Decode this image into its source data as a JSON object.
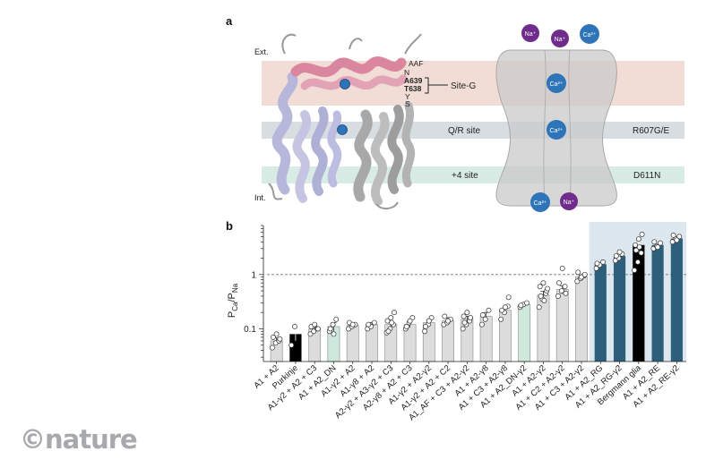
{
  "panel_a": {
    "label": "a",
    "ext_label": "Ext.",
    "int_label": "Int.",
    "residue_lines": [
      "AAF",
      "N",
      "A639",
      "T638",
      "Y",
      "S"
    ],
    "site_g_label": "Site-G",
    "band_qr_left": "Q/R site",
    "band_qr_right": "R607G/E",
    "band_4_left": "+4 site",
    "band_4_right": "D611N",
    "ions": {
      "na": "Na⁺",
      "ca": "Ca²⁺"
    },
    "colors": {
      "band_siteg": "#f2ddd6",
      "band_qr": "#d7dde1",
      "band_4": "#d8ebe4",
      "channel": "#c9c9c9",
      "ca_ion": "#2d74b8",
      "na_ion": "#6f2c8c",
      "helix_pink": "#d9869e",
      "helix_lav": "#b7b7dc",
      "helix_gray": "#a8a8a8"
    }
  },
  "panel_b": {
    "label": "b",
    "y_label_main": "P",
    "y_label_sub1": "Ca",
    "y_label_sep": "/P",
    "y_label_sub2": "Na",
    "colors": {
      "gray_bar": "#dcdcdc",
      "black_bar": "#000000",
      "green_bar": "#cfe8dc",
      "blue_bar": "#2e5f7a",
      "highlight": "#dce7f0"
    }
  },
  "chart_data": {
    "type": "bar",
    "yscale": "log",
    "ylim": [
      0.025,
      8
    ],
    "yticks": [
      0.1,
      1
    ],
    "ytick_labels": [
      "0.1",
      "1"
    ],
    "reference_line": 1,
    "categories": [
      "A1 + A2",
      "Purkinje",
      "A1-γ2 + A2 + C3",
      "A1 + A2_DN",
      "A1-γ2 + A2",
      "A1-γ8 + A2",
      "A2-γ2 + A3-γ2 + C3",
      "A2-γ8 + A2 + C3",
      "A1-γ2 + A2-γ2",
      "A1-γ2 + A2 + C2",
      "A1_AF + C3 + A2-γ2",
      "A1 + A2-γ8",
      "A1 + C3 + A2-γ8",
      "A1 + A2_DN-γ2",
      "A1 + A2-γ2",
      "A1 + C2 + A2-γ2",
      "A1 + C3 + A2-γ2",
      "A1 + A2_RG",
      "A1 + A2_RG-γ2",
      "Bergmann glia",
      "A1 + A2_RE",
      "A1 + A2_RE-γ2"
    ],
    "values": [
      0.06,
      0.08,
      0.1,
      0.11,
      0.115,
      0.12,
      0.12,
      0.12,
      0.13,
      0.14,
      0.15,
      0.17,
      0.22,
      0.28,
      0.42,
      0.53,
      0.9,
      1.55,
      2.2,
      3.5,
      3.5,
      4.6
    ],
    "errors": [
      0.008,
      0.02,
      0.01,
      0.02,
      0.008,
      0.01,
      0.015,
      0.015,
      0.015,
      0.02,
      0.02,
      0.03,
      0.03,
      0.02,
      0.07,
      0.09,
      0.08,
      0.12,
      0.2,
      0.9,
      0.3,
      0.35
    ],
    "bar_styles": [
      "gray",
      "black",
      "gray",
      "green",
      "gray",
      "gray",
      "gray",
      "gray",
      "gray",
      "gray",
      "gray",
      "gray",
      "gray",
      "green",
      "gray",
      "gray",
      "gray",
      "blue",
      "blue",
      "black",
      "blue",
      "blue"
    ],
    "points": [
      [
        0.045,
        0.055,
        0.06,
        0.07,
        0.08,
        0.065
      ],
      [
        0.05,
        0.11
      ],
      [
        0.08,
        0.09,
        0.1,
        0.11,
        0.12,
        0.1
      ],
      [
        0.09,
        0.12,
        0.15,
        0.1,
        0.08
      ],
      [
        0.1,
        0.11,
        0.12,
        0.13,
        0.12
      ],
      [
        0.1,
        0.11,
        0.13,
        0.12
      ],
      [
        0.085,
        0.1,
        0.12,
        0.14,
        0.16,
        0.2,
        0.09,
        0.13
      ],
      [
        0.1,
        0.13,
        0.16,
        0.11,
        0.14
      ],
      [
        0.09,
        0.12,
        0.16,
        0.11,
        0.14
      ],
      [
        0.12,
        0.13,
        0.15,
        0.17,
        0.14
      ],
      [
        0.1,
        0.12,
        0.14,
        0.17,
        0.2,
        0.16,
        0.13
      ],
      [
        0.12,
        0.15,
        0.22,
        0.18
      ],
      [
        0.15,
        0.2,
        0.26,
        0.22,
        0.25,
        0.38
      ],
      [
        0.25,
        0.28,
        0.3,
        0.27
      ],
      [
        0.25,
        0.35,
        0.45,
        0.6,
        0.7,
        0.5,
        0.4,
        0.33,
        0.55
      ],
      [
        0.4,
        0.5,
        0.6,
        0.7,
        1.3,
        0.45
      ],
      [
        0.75,
        0.85,
        0.95,
        1.1,
        0.9,
        1.0
      ],
      [
        1.3,
        1.5,
        1.7,
        1.6
      ],
      [
        1.8,
        2.0,
        2.4,
        2.2,
        2.6
      ],
      [
        1.2,
        1.7,
        2.5,
        3.5,
        4.5,
        5.5,
        2.8,
        3.2
      ],
      [
        3.0,
        3.3,
        3.8,
        4.0,
        3.2
      ],
      [
        4.0,
        4.5,
        5.0,
        5.3,
        4.3
      ]
    ]
  },
  "logo": {
    "text": "©nature"
  }
}
